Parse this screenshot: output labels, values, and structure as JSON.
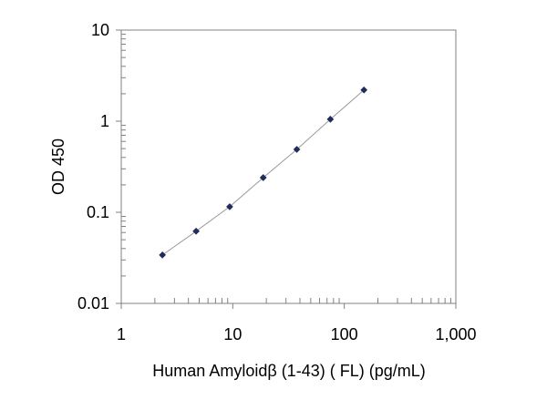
{
  "chart_data": {
    "type": "scatter",
    "title": "",
    "xlabel": "Human Amyloidβ (1-43) ( FL) (pg/mL)",
    "ylabel": "OD 450",
    "x_scale": "log",
    "y_scale": "log",
    "xlim": [
      1,
      1000
    ],
    "ylim": [
      0.01,
      10
    ],
    "x_ticks": [
      1,
      10,
      100,
      1000
    ],
    "x_tick_labels": [
      "1",
      "10",
      "100",
      "1,000"
    ],
    "y_ticks": [
      10,
      1,
      0.1,
      0.01
    ],
    "y_tick_labels": [
      "10",
      "1",
      "0.1",
      "0.01"
    ],
    "grid": false,
    "legend": "none",
    "colors": {
      "marker": "#1f2d5c",
      "fit_line": "#9a9a9a",
      "axes": "#808080"
    },
    "series": [
      {
        "x": [
          2.34,
          4.69,
          9.38,
          18.75,
          37.5,
          75,
          150
        ],
        "y": [
          0.034,
          0.062,
          0.115,
          0.24,
          0.49,
          1.05,
          2.2
        ]
      }
    ]
  }
}
